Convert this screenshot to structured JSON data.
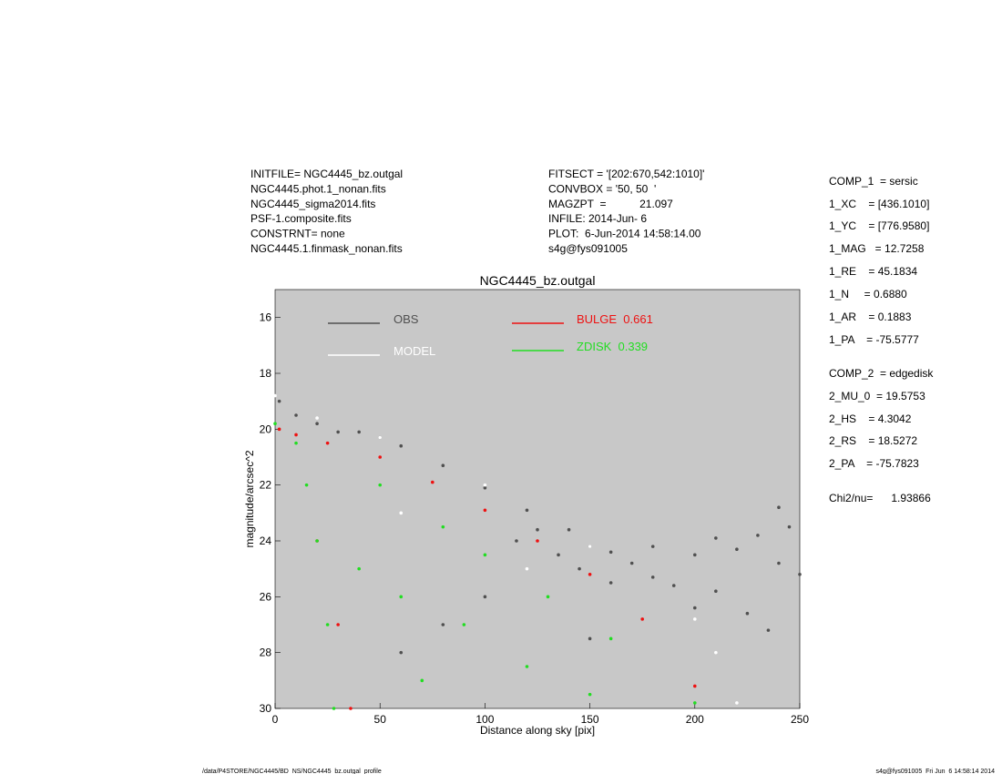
{
  "chart_data": {
    "type": "scatter",
    "title": "NGC4445_bz.outgal",
    "x_label": "Distance along sky [pix]",
    "y_label": "magnitude/arcsec^2",
    "xlim": [
      0,
      250
    ],
    "xticks": [
      0,
      50,
      100,
      150,
      200,
      250
    ],
    "ylim": [
      30,
      15
    ],
    "yticks": [
      16,
      18,
      20,
      22,
      24,
      26,
      28,
      30
    ],
    "background": "#c8c8c8",
    "series": [
      {
        "name": "OBS",
        "color": "#505050",
        "x": [
          2,
          10,
          20,
          30,
          40,
          50,
          60,
          80,
          100,
          120,
          140,
          160,
          180,
          200,
          115,
          125,
          135,
          145,
          150,
          160,
          170,
          180,
          190,
          200,
          210,
          220,
          230,
          240,
          245,
          250,
          225,
          235,
          100,
          80,
          60,
          150,
          210,
          240
        ],
        "values": [
          19.0,
          19.5,
          19.8,
          20.1,
          20.1,
          20.3,
          20.6,
          21.3,
          22.1,
          22.9,
          23.6,
          24.4,
          25.3,
          26.4,
          24.0,
          23.6,
          24.5,
          25.0,
          24.2,
          25.5,
          24.8,
          24.2,
          25.6,
          24.5,
          25.8,
          24.3,
          23.8,
          24.8,
          23.5,
          25.2,
          26.6,
          27.2,
          26,
          27,
          28,
          27.5,
          23.9,
          22.8
        ]
      },
      {
        "name": "MODEL",
        "color": "#ffffff",
        "x": [
          0,
          20,
          50,
          100,
          150,
          200,
          210,
          220,
          60,
          120
        ],
        "values": [
          18.8,
          19.6,
          20.3,
          22.0,
          24.2,
          26.8,
          28,
          29.8,
          23,
          25
        ]
      },
      {
        "name": "BULGE  0.661",
        "color": "#ee1111",
        "x": [
          2,
          10,
          25,
          50,
          75,
          100,
          125,
          150,
          175,
          200,
          36,
          30,
          20
        ],
        "values": [
          20.0,
          20.2,
          20.5,
          21.0,
          21.9,
          22.9,
          24.0,
          25.2,
          26.8,
          29.2,
          30,
          27,
          24
        ]
      },
      {
        "name": "ZDISK  0.339",
        "color": "#22dd22",
        "x": [
          0,
          10,
          15,
          20,
          25,
          28,
          50,
          80,
          100,
          130,
          160,
          200,
          60,
          90,
          120,
          70,
          40,
          150
        ],
        "values": [
          19.8,
          20.5,
          22,
          24,
          27,
          30,
          22,
          23.5,
          24.5,
          26,
          27.5,
          29.8,
          26,
          27,
          28.5,
          29,
          25,
          29.5
        ]
      }
    ]
  },
  "header_left": [
    "INITFILE= NGC4445_bz.outgal",
    "NGC4445.phot.1_nonan.fits",
    "NGC4445_sigma2014.fits",
    "PSF-1.composite.fits",
    "CONSTRNT= none",
    "NGC4445.1.finmask_nonan.fits"
  ],
  "header_right": [
    "FITSECT = '[202:670,542:1010]'",
    "CONVBOX = '50, 50  '",
    "MAGZPT  =           21.097",
    "INFILE: 2014-Jun- 6",
    "PLOT:  6-Jun-2014 14:58:14.00",
    "s4g@fys091005"
  ],
  "parameters": [
    "COMP_1  = sersic",
    "1_XC    = [436.1010]",
    "1_YC    = [776.9580]",
    "1_MAG   = 12.7258",
    "1_RE    = 45.1834",
    "1_N     = 0.6880",
    "1_AR    = 0.1883",
    "1_PA    = -75.5777",
    "COMP_2  = edgedisk",
    "2_MU_0  = 19.5753",
    "2_HS    = 4.3042",
    "2_RS    = 18.5272",
    "2_PA    = -75.7823",
    "Chi2/nu=      1.93866"
  ],
  "footer_left": "/data/P4STORE/NGC4445/BD_NS/NGC4445_bz.outgal_profile",
  "footer_right": "s4g@fys091005  Fri Jun  6 14:58:14 2014"
}
